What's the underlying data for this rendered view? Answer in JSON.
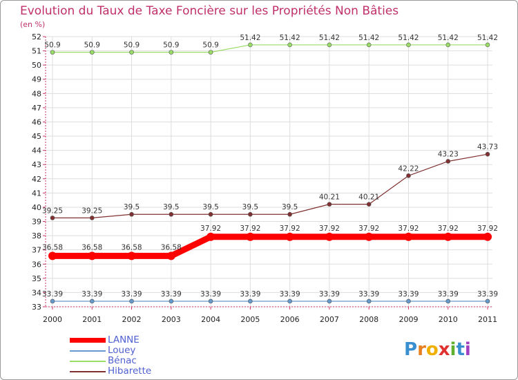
{
  "chart_data": {
    "type": "line",
    "title": "Evolution du Taux de Taxe Foncière sur les Propriétés Non Bâties",
    "subtitle": "(en %)",
    "categories": [
      "2000",
      "2001",
      "2002",
      "2003",
      "2004",
      "2005",
      "2006",
      "2007",
      "2008",
      "2009",
      "2010",
      "2011"
    ],
    "ylim": [
      33,
      52
    ],
    "y_ticks": [
      "33",
      "34",
      "35",
      "36",
      "37",
      "38",
      "39",
      "40",
      "41",
      "42",
      "43",
      "44",
      "45",
      "46",
      "47",
      "48",
      "49",
      "50",
      "51",
      "52"
    ],
    "series": [
      {
        "name": "LANNE",
        "color": "#ff0000",
        "values": [
          36.58,
          36.58,
          36.58,
          36.58,
          37.92,
          37.92,
          37.92,
          37.92,
          37.92,
          37.92,
          37.92,
          37.92
        ],
        "labels": [
          "36.58",
          "36.58",
          "36.58",
          "36.58",
          "37.92",
          "37.92",
          "37.92",
          "37.92",
          "37.92",
          "37.92",
          "37.92",
          "37.92"
        ]
      },
      {
        "name": "Louey",
        "color": "#6699cc",
        "values": [
          33.39,
          33.39,
          33.39,
          33.39,
          33.39,
          33.39,
          33.39,
          33.39,
          33.39,
          33.39,
          33.39,
          33.39
        ],
        "labels": [
          "33.39",
          "33.39",
          "33.39",
          "33.39",
          "33.39",
          "33.39",
          "33.39",
          "33.39",
          "33.39",
          "33.39",
          "33.39",
          "33.39"
        ]
      },
      {
        "name": "Bénac",
        "color": "#99dd66",
        "values": [
          50.9,
          50.9,
          50.9,
          50.9,
          50.9,
          51.42,
          51.42,
          51.42,
          51.42,
          51.42,
          51.42,
          51.42
        ],
        "labels": [
          "50.9",
          "50.9",
          "50.9",
          "50.9",
          "50.9",
          "51.42",
          "51.42",
          "51.42",
          "51.42",
          "51.42",
          "51.42",
          "51.42"
        ]
      },
      {
        "name": "Hibarette",
        "color": "#803030",
        "values": [
          39.25,
          39.25,
          39.5,
          39.5,
          39.5,
          39.5,
          39.5,
          40.21,
          40.21,
          42.22,
          43.23,
          43.73
        ],
        "labels": [
          "39.25",
          "39.25",
          "39.5",
          "39.5",
          "39.5",
          "39.5",
          "39.5",
          "40.21",
          "40.21",
          "42.22",
          "43.23",
          "43.73"
        ]
      }
    ],
    "legend_position": "bottom-left"
  },
  "branding": {
    "logo_text": "Proxiti",
    "logo_letters": [
      "P",
      "r",
      "o",
      "x",
      "i",
      "t",
      "i"
    ]
  },
  "colors": {
    "title": "#c0306a",
    "legend_text": "#5060d0",
    "grid": "#cccccc"
  }
}
